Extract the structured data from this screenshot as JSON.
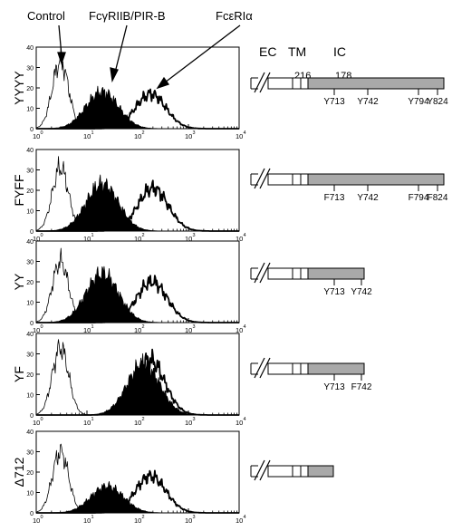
{
  "labels": {
    "control": "Control",
    "fcgr": "FcγRIIB/PIR-B",
    "fcer": "FcεRIα",
    "ec": "EC",
    "tm": "TM",
    "ic": "IC",
    "num216": "216",
    "num178": "178"
  },
  "panels": [
    {
      "name": "YYYY",
      "sites": [
        "Y713",
        "Y742",
        "Y794",
        "Y824"
      ]
    },
    {
      "name": "FYFF",
      "sites": [
        "F713",
        "Y742",
        "F794",
        "F824"
      ]
    },
    {
      "name": "YY",
      "sites": [
        "Y713",
        "Y742"
      ]
    },
    {
      "name": "YF",
      "sites": [
        "Y713",
        "F742"
      ]
    },
    {
      "name": "Δ712",
      "sites": []
    }
  ],
  "axis": {
    "y_ticks": [
      "0",
      "10",
      "20",
      "30",
      "40"
    ],
    "x_ticks": [
      {
        "base": "10",
        "exp": "0"
      },
      {
        "base": "10",
        "exp": "1"
      },
      {
        "base": "10",
        "exp": "2"
      },
      {
        "base": "10",
        "exp": "3"
      },
      {
        "base": "10",
        "exp": "4"
      }
    ]
  },
  "chart_data": {
    "type": "area",
    "x_scale": "log",
    "xlim": [
      1,
      10000
    ],
    "ylim": [
      0,
      40
    ],
    "series_types": [
      "Control",
      "FcγRIIB/PIR-B",
      "FcεRIα"
    ],
    "panels": [
      {
        "name": "YYYY",
        "peaks": {
          "Control": [
            3,
            33
          ],
          "FcγRIIB/PIR-B": [
            20,
            18
          ],
          "FcεRIα": [
            180,
            17
          ]
        }
      },
      {
        "name": "FYFF",
        "peaks": {
          "Control": [
            3,
            31
          ],
          "FcγRIIB/PIR-B": [
            20,
            23
          ],
          "FcεRIα": [
            200,
            21
          ]
        }
      },
      {
        "name": "YY",
        "peaks": {
          "Control": [
            3,
            30
          ],
          "FcγRIIB/PIR-B": [
            20,
            24
          ],
          "FcεRIα": [
            190,
            20
          ]
        }
      },
      {
        "name": "YF",
        "peaks": {
          "Control": [
            3,
            33
          ],
          "FcγRIIB/PIR-B": [
            130,
            25
          ],
          "FcεRIα": [
            170,
            27
          ]
        }
      },
      {
        "name": "Δ712",
        "peaks": {
          "Control": [
            3,
            30
          ],
          "FcγRIIB/PIR-B": [
            25,
            13
          ],
          "FcεRIα": [
            180,
            18
          ]
        }
      }
    ]
  }
}
